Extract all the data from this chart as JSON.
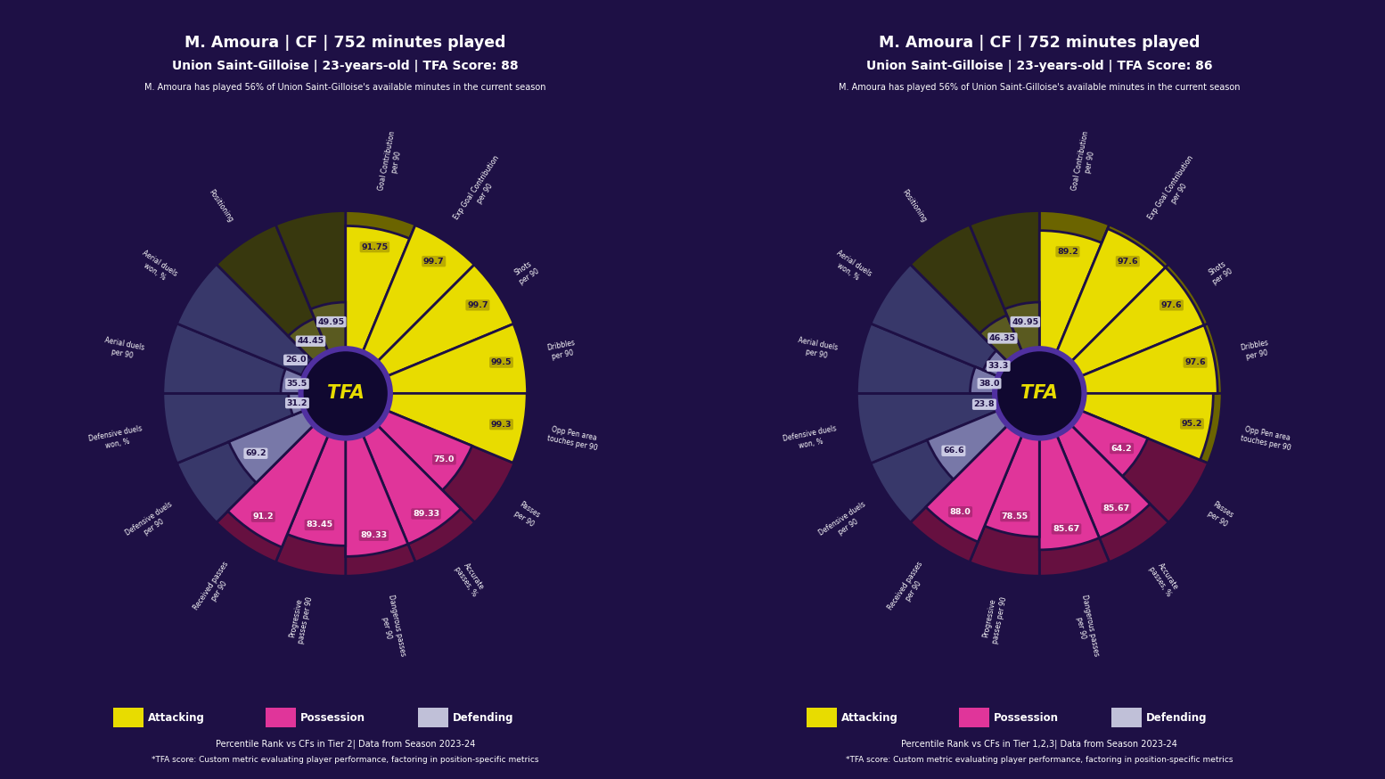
{
  "background_color": "#1e1045",
  "charts": [
    {
      "title_line1": "M. Amoura | CF | 752 minutes played",
      "title_line2": "Union Saint-Gilloise | 23-years-old | TFA Score: 88",
      "subtitle": "M. Amoura has played 56% of Union Saint-Gilloise's available minutes in the current season",
      "footer1": "Percentile Rank vs CFs in Tier 2| Data from Season 2023-24",
      "footer2": "*TFA score: Custom metric evaluating player performance, factoring in position-specific metrics",
      "values": [
        91.75,
        99.7,
        99.7,
        99.5,
        99.3,
        75.0,
        89.33,
        89.33,
        83.45,
        91.2,
        69.2,
        31.2,
        35.5,
        26.0,
        44.45,
        49.95
      ],
      "categories": [
        "attacking",
        "attacking",
        "attacking",
        "attacking",
        "attacking",
        "possession",
        "possession",
        "possession",
        "possession",
        "possession",
        "defending",
        "defending",
        "defending",
        "defending",
        "positioning",
        "positioning"
      ],
      "value_labels": [
        "91.75",
        "99.7",
        "99.7",
        "99.5",
        "99.3",
        "75.0",
        "89.33",
        "89.33",
        "83.45",
        "91.2",
        "69.2",
        "31.2",
        "35.5",
        "26.0",
        "44.45",
        "49.95"
      ],
      "axis_labels": [
        "Goal Contribution\nper 90",
        "Exp Goal Contribution\nper 90",
        "Shots\nper 90",
        "Dribbles\nper 90",
        "Opp Pen area\ntouches per 90",
        "Passes\nper 90",
        "Accurate\npasses, %",
        "Dangerous passes\nper 90",
        "Progressive\npasses per 90",
        "Received passes\nper 90",
        "Defensive duels\nper 90",
        "Defensive duels\nwon, %",
        "Aerial duels\nper 90",
        "Aerial duels\nwon, %",
        "Positioning",
        ""
      ]
    },
    {
      "title_line1": "M. Amoura | CF | 752 minutes played",
      "title_line2": "Union Saint-Gilloise | 23-years-old | TFA Score: 86",
      "subtitle": "M. Amoura has played 56% of Union Saint-Gilloise's available minutes in the current season",
      "footer1": "Percentile Rank vs CFs in Tier 1,2,3| Data from Season 2023-24",
      "footer2": "*TFA score: Custom metric evaluating player performance, factoring in position-specific metrics",
      "values": [
        89.2,
        97.6,
        97.6,
        97.6,
        95.2,
        64.2,
        85.67,
        85.67,
        78.55,
        88.0,
        66.6,
        23.8,
        38.0,
        33.3,
        46.35,
        49.95
      ],
      "categories": [
        "attacking",
        "attacking",
        "attacking",
        "attacking",
        "attacking",
        "possession",
        "possession",
        "possession",
        "possession",
        "possession",
        "defending",
        "defending",
        "defending",
        "defending",
        "positioning",
        "positioning"
      ],
      "value_labels": [
        "89.2",
        "97.6",
        "97.6",
        "97.6",
        "95.2",
        "64.2",
        "85.67",
        "85.67",
        "78.55",
        "88.0",
        "66.6",
        "23.8",
        "38.0",
        "33.3",
        "46.35",
        "49.95"
      ],
      "axis_labels": [
        "Goal Contribution\nper 90",
        "Exp Goal Contribution\nper 90",
        "Shots\nper 90",
        "Dribbles\nper 90",
        "Opp Pen area\ntouches per 90",
        "Passes\nper 90",
        "Accurate\npasses, %",
        "Dangerous passes\nper 90",
        "Progressive\npasses per 90",
        "Received passes\nper 90",
        "Defensive duels\nper 90",
        "Defensive duels\nwon, %",
        "Aerial duels\nper 90",
        "Aerial duels\nwon, %",
        "Positioning",
        ""
      ]
    }
  ],
  "colors": {
    "attacking": "#e8dc00",
    "attacking_bg": "#6b6400",
    "possession": "#e0359a",
    "possession_bg": "#661040",
    "defending": "#7878a8",
    "defending_bg": "#38386a",
    "positioning": "#5a5a20",
    "positioning_bg": "#38380e",
    "white": "#ffffff",
    "background": "#1e1045",
    "center_circle_bg": "#100830",
    "center_circle_border": "#5030a0",
    "grid_color": "#3a2a70",
    "tfa_color": "#e8dc00",
    "value_bg_attacking": "#b8aa00",
    "value_bg_possession": "#b02878",
    "value_bg_defending": "#d0d0e8",
    "value_text_dark": "#1e1045",
    "value_text_light": "#ffffff"
  },
  "legend": {
    "attacking_label": "Attacking",
    "possession_label": "Possession",
    "defending_label": "Defending"
  }
}
